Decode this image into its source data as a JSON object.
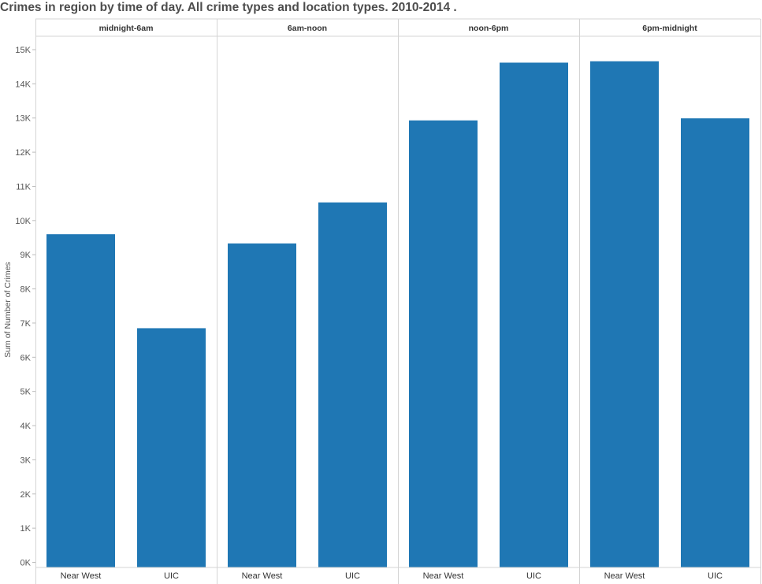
{
  "chart_data": {
    "type": "bar",
    "title": "Crimes in region by time of day.  All crime types and location types.   2010-2014 .",
    "ylabel": "Sum of Number of Crimes",
    "xlabel": "",
    "ylim": [
      0,
      15000
    ],
    "y_ticks": [
      "0K",
      "1K",
      "2K",
      "3K",
      "4K",
      "5K",
      "6K",
      "7K",
      "8K",
      "9K",
      "10K",
      "11K",
      "12K",
      "13K",
      "14K",
      "15K"
    ],
    "grid": false,
    "panels": [
      "midnight-6am",
      "6am-noon",
      "noon-6pm",
      "6pm-midnight"
    ],
    "categories": [
      "Near West",
      "UIC"
    ],
    "bar_color": "#1f77b4",
    "values": [
      [
        9600,
        6850
      ],
      [
        9330,
        10530
      ],
      [
        12930,
        14620
      ],
      [
        14660,
        12990
      ]
    ]
  }
}
